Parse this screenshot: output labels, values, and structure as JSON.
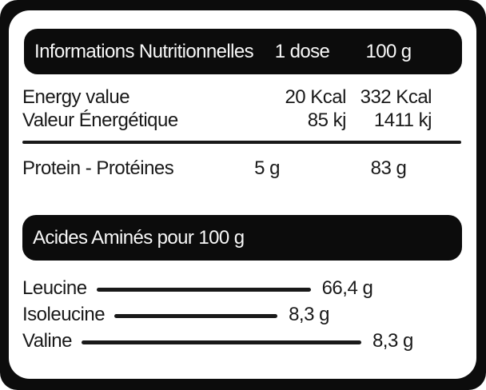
{
  "colors": {
    "frame": "#0c0c0c",
    "card": "#ffffff",
    "text": "#191919"
  },
  "header_bar": {
    "title": "Informations Nutritionnelles",
    "col_dose": "1 dose",
    "col_100g": "100 g"
  },
  "energy_section": {
    "rows": [
      {
        "label": "Energy value",
        "per_dose": "20 Kcal",
        "per_100g": "332 Kcal"
      },
      {
        "label": "Valeur Énergétique",
        "per_dose": "85 kj",
        "per_100g": "1411 kj"
      }
    ]
  },
  "protein_row": {
    "label": "Protein - Protéines",
    "per_dose": "5 g",
    "per_100g": "83 g"
  },
  "amino_bar": {
    "title": "Acides Aminés pour 100 g"
  },
  "amino_rows": [
    {
      "name": "Leucine",
      "value": "66,4 g"
    },
    {
      "name": "Isoleucine",
      "value": "8,3 g"
    },
    {
      "name": "Valine",
      "value": "8,3 g"
    }
  ]
}
